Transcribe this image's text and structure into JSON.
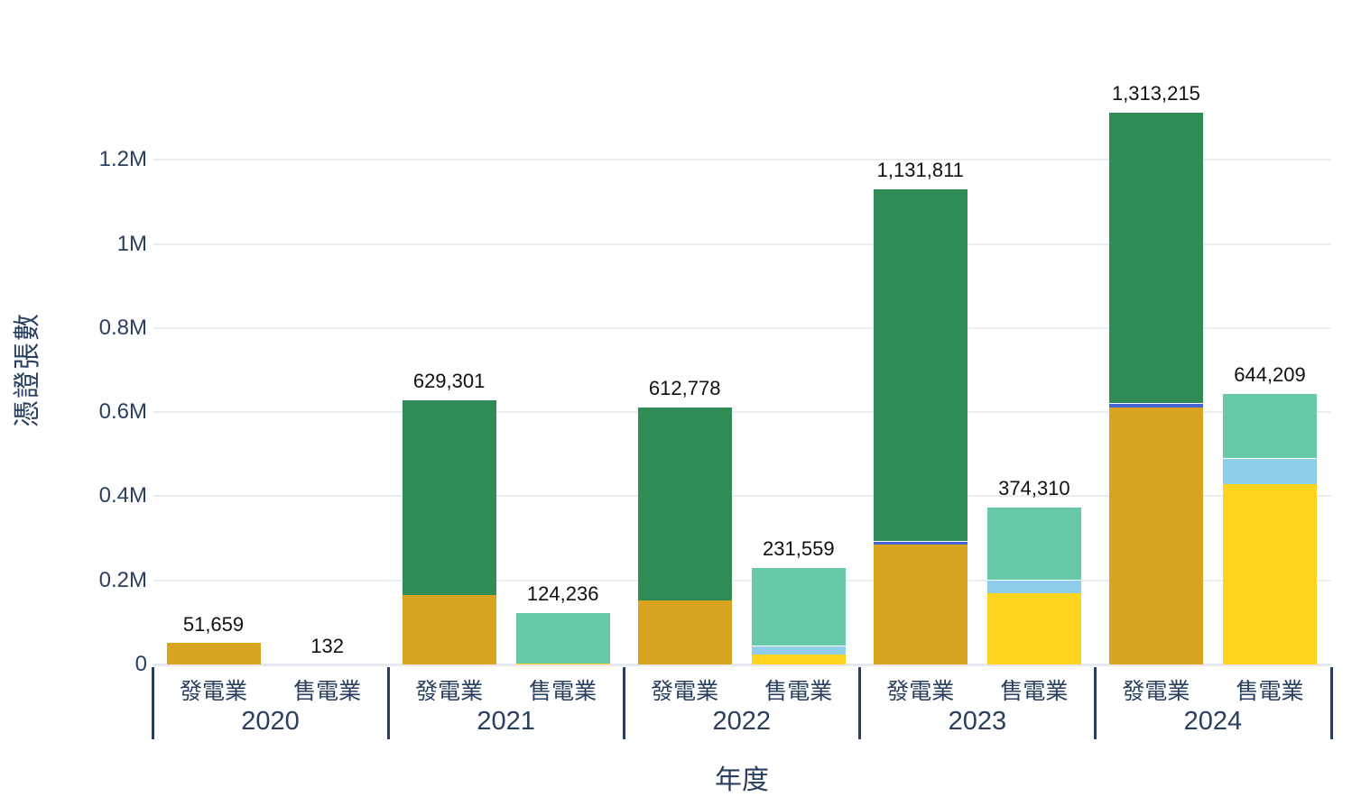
{
  "colors": {
    "background": "#ffffff",
    "axis_text": "#2a3f5f",
    "value_label": "#111111",
    "gridline": "#e9edf2",
    "axis_line": "#e8e8f0",
    "group_divider": "#2a3f5f"
  },
  "chart_data": {
    "type": "bar",
    "stacked": true,
    "title": "",
    "xlabel": "年度",
    "ylabel": "憑證張數",
    "ylim": [
      0,
      1350000
    ],
    "grid": true,
    "legend_position": "none",
    "y_ticks": [
      {
        "value": 0,
        "label": "0"
      },
      {
        "value": 200000,
        "label": "0.2M"
      },
      {
        "value": 400000,
        "label": "0.4M"
      },
      {
        "value": 600000,
        "label": "0.6M"
      },
      {
        "value": 800000,
        "label": "0.8M"
      },
      {
        "value": 1000000,
        "label": "1M"
      },
      {
        "value": 1200000,
        "label": "1.2M"
      }
    ],
    "categories_per_group": [
      "發電業",
      "售電業"
    ],
    "palette": {
      "goldenrod": "#d9a521",
      "seagreen": "#2f8c56",
      "mediumaquamarine": "#66c9a9",
      "gold": "#ffd41e",
      "skyblue": "#8fceea",
      "royalblue": "#4565d4"
    },
    "segment_values_note": "segment splits estimated from bar pixel heights; totals are the printed labels",
    "groups": [
      {
        "year": "2020",
        "bars": [
          {
            "category": "發電業",
            "total": 51659,
            "total_label": "51,659",
            "segments": [
              {
                "color": "goldenrod",
                "value": 51659
              }
            ]
          },
          {
            "category": "售電業",
            "total": 132,
            "total_label": "132",
            "segments": [
              {
                "color": "mediumaquamarine",
                "value": 132
              }
            ]
          }
        ]
      },
      {
        "year": "2021",
        "bars": [
          {
            "category": "發電業",
            "total": 629301,
            "total_label": "629,301",
            "segments": [
              {
                "color": "goldenrod",
                "value": 166000
              },
              {
                "color": "seagreen",
                "value": 463301
              }
            ]
          },
          {
            "category": "售電業",
            "total": 124236,
            "total_label": "124,236",
            "segments": [
              {
                "color": "gold",
                "value": 2000
              },
              {
                "color": "mediumaquamarine",
                "value": 122236
              }
            ]
          }
        ]
      },
      {
        "year": "2022",
        "bars": [
          {
            "category": "發電業",
            "total": 612778,
            "total_label": "612,778",
            "segments": [
              {
                "color": "goldenrod",
                "value": 152000
              },
              {
                "color": "seagreen",
                "value": 460778
              }
            ]
          },
          {
            "category": "售電業",
            "total": 231559,
            "total_label": "231,559",
            "segments": [
              {
                "color": "gold",
                "value": 24000
              },
              {
                "color": "skyblue",
                "value": 22000
              },
              {
                "color": "mediumaquamarine",
                "value": 185559
              }
            ]
          }
        ]
      },
      {
        "year": "2023",
        "bars": [
          {
            "category": "發電業",
            "total": 1131811,
            "total_label": "1,131,811",
            "segments": [
              {
                "color": "goldenrod",
                "value": 285000
              },
              {
                "color": "royalblue",
                "value": 8000
              },
              {
                "color": "seagreen",
                "value": 838811
              }
            ]
          },
          {
            "category": "售電業",
            "total": 374310,
            "total_label": "374,310",
            "segments": [
              {
                "color": "gold",
                "value": 169000
              },
              {
                "color": "skyblue",
                "value": 32000
              },
              {
                "color": "mediumaquamarine",
                "value": 173310
              }
            ]
          }
        ]
      },
      {
        "year": "2024",
        "bars": [
          {
            "category": "發電業",
            "total": 1313215,
            "total_label": "1,313,215",
            "segments": [
              {
                "color": "goldenrod",
                "value": 611000
              },
              {
                "color": "royalblue",
                "value": 11000
              },
              {
                "color": "seagreen",
                "value": 691215
              }
            ]
          },
          {
            "category": "售電業",
            "total": 644209,
            "total_label": "644,209",
            "segments": [
              {
                "color": "gold",
                "value": 429000
              },
              {
                "color": "skyblue",
                "value": 62000
              },
              {
                "color": "mediumaquamarine",
                "value": 153209
              }
            ]
          }
        ]
      }
    ]
  }
}
